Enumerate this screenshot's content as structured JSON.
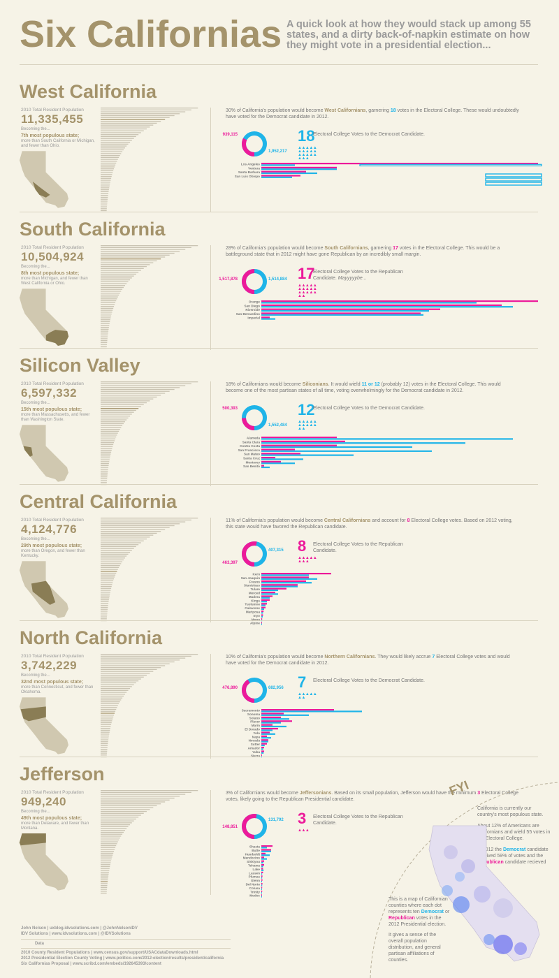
{
  "header": {
    "title": "Six Californias",
    "tagline": "A quick look at how they would stack up among 55 states, and a dirty back-of-napkin estimate on how they might vote in a presidential election..."
  },
  "pop_label": "2010 Total Resident Population",
  "becoming_label": "Becoming the...",
  "ev_line_suffix_dem": "Electoral College Votes to the Democrat Candidate.",
  "ev_line_suffix_rep": "Electoral College Votes to the Republican Candidate.",
  "colors": {
    "gold": "#a4936b",
    "magenta": "#ec1a9a",
    "cyan": "#1fb4e8",
    "background": "#f6f3e7"
  },
  "states": [
    {
      "name": "West California",
      "population": "11,335,455",
      "rank": "7th most populous state;",
      "comparison": "more than South California or Michigan, and fewer than Ohio.",
      "rank_index": 7,
      "description": [
        {
          "t": "30% of California's population would become "
        },
        {
          "t": "West Californians",
          "k": "g"
        },
        {
          "t": ", garnering "
        },
        {
          "t": "18",
          "k": "c"
        },
        {
          "t": " votes in the Electoral College.  These would undoubtedly have voted for the Democrat candidate in 2012."
        }
      ],
      "rep_votes": "939,115",
      "dem_votes": "1,952,217",
      "rep_share": 0.325,
      "electoral_votes": "18",
      "winner": "dem",
      "ev_suffix": "",
      "counties": [
        {
          "name": "Los Angeles",
          "rep": 0.99,
          "dem": 0.12,
          "rep_label": "514,xxx"
        },
        {
          "name": "Ventura",
          "rep": 0.27,
          "dem": 0.27
        },
        {
          "name": "Santa Barbara",
          "rep": 0.16,
          "dem": 0.2
        },
        {
          "name": "San Luis Obispo",
          "rep": 0.14,
          "dem": 0.11,
          "dem_label": "xx,xxx"
        }
      ],
      "map_region": "west"
    },
    {
      "name": "South California",
      "population": "10,504,924",
      "rank": "8th most populous state;",
      "comparison": "more than Michigan, and fewer than West California or Ohio.",
      "rank_index": 8,
      "description": [
        {
          "t": "28% of California's population would become "
        },
        {
          "t": "South Californians",
          "k": "g"
        },
        {
          "t": ", garnering "
        },
        {
          "t": "17",
          "k": "m"
        },
        {
          "t": " votes in the Electoral College.  This would be a battleground state that in 2012 might have gone Republican by an incredibly small margin."
        }
      ],
      "rep_votes": "1,517,878",
      "dem_votes": "1,514,884",
      "rep_share": 0.5,
      "electoral_votes": "17",
      "winner": "rep",
      "ev_suffix": "Mayyyyybe...",
      "counties": [
        {
          "name": "Orange",
          "rep": 0.99,
          "dem": 0.77,
          "rep_label": "xxx,xxx"
        },
        {
          "name": "San Diego",
          "rep": 0.86,
          "dem": 0.9,
          "dem_label": "xxx,xxx"
        },
        {
          "name": "Riverside",
          "rep": 0.64,
          "dem": 0.6
        },
        {
          "name": "San Bernardino",
          "rep": 0.57,
          "dem": 0.58
        },
        {
          "name": "Imperial",
          "rep": 0.03,
          "dem": 0.05,
          "rep_label": "x,xxx",
          "dem_label": "xx,xxx"
        }
      ],
      "map_region": "south"
    },
    {
      "name": "Silicon Valley",
      "population": "6,597,332",
      "rank": "15th most populous state;",
      "comparison": "more than Massachusetts, and fewer than Washington State.",
      "rank_index": 15,
      "description": [
        {
          "t": "18% of Californians would become "
        },
        {
          "t": "Siliconians",
          "k": "g"
        },
        {
          "t": ".  It would wield "
        },
        {
          "t": "11 or 12",
          "k": "c"
        },
        {
          "t": " (probably 12) votes in the Electoral College.  This would become one of the most partisan states of all time, voting overwhelmingly for the Democrat candidate in 2012."
        }
      ],
      "rep_votes": "500,393",
      "dem_votes": "1,552,484",
      "rep_share": 0.244,
      "electoral_votes": "12",
      "winner": "dem",
      "ev_suffix": "",
      "counties": [
        {
          "name": "Alameda",
          "rep": 0.27,
          "dem": 0.9,
          "rep_label": "xxx,xxx",
          "dem_label": "xxx,xxx"
        },
        {
          "name": "Santa Clara",
          "rep": 0.3,
          "dem": 0.73
        },
        {
          "name": "Contra Costa",
          "rep": 0.27,
          "dem": 0.54
        },
        {
          "name": "San Francisco",
          "rep": 0.12,
          "dem": 0.61
        },
        {
          "name": "San Mateo",
          "rep": 0.14,
          "dem": 0.33
        },
        {
          "name": "Santa Cruz",
          "rep": 0.05,
          "dem": 0.15
        },
        {
          "name": "Monterey",
          "rep": 0.07,
          "dem": 0.12
        },
        {
          "name": "San Benito",
          "rep": 0.01,
          "dem": 0.03,
          "rep_label": "x,xxx",
          "dem_label": "x,xxx"
        }
      ],
      "map_region": "silicon"
    },
    {
      "name": "Central California",
      "population": "4,124,776",
      "rank": "29th most populous state;",
      "comparison": "more than Oregon, and fewer than Kentucky.",
      "rank_index": 29,
      "description": [
        {
          "t": "11% of California's population would become "
        },
        {
          "t": "Central Californians",
          "k": "g"
        },
        {
          "t": " and account for "
        },
        {
          "t": "8",
          "k": "m"
        },
        {
          "t": " Electoral College votes.  Based on 2012 voting, this state would have favored the Republican candidate."
        }
      ],
      "rep_votes": "463,397",
      "dem_votes": "407,315",
      "rep_share": 0.532,
      "electoral_votes": "8",
      "winner": "rep",
      "ev_suffix": "",
      "counties": [
        {
          "name": "Kern",
          "rep": 0.25,
          "dem": 0.17,
          "rep_label": "xxx,xxx"
        },
        {
          "name": "San Joaquin",
          "rep": 0.17,
          "dem": 0.2,
          "dem_label": "xx,xxx"
        },
        {
          "name": "Fresno",
          "rep": 0.16,
          "dem": 0.18
        },
        {
          "name": "Stanislaus",
          "rep": 0.13,
          "dem": 0.13
        },
        {
          "name": "Tulare",
          "rep": 0.09,
          "dem": 0.06
        },
        {
          "name": "Merced",
          "rep": 0.05,
          "dem": 0.06
        },
        {
          "name": "Madera",
          "rep": 0.04,
          "dem": 0.03
        },
        {
          "name": "Kings",
          "rep": 0.03,
          "dem": 0.02
        },
        {
          "name": "Tuolumne",
          "rep": 0.02,
          "dem": 0.015
        },
        {
          "name": "Calaveras",
          "rep": 0.015,
          "dem": 0.01
        },
        {
          "name": "Mariposa",
          "rep": 0.008,
          "dem": 0.006
        },
        {
          "name": "Inyo",
          "rep": 0.006,
          "dem": 0.005
        },
        {
          "name": "Mono",
          "rep": 0.003,
          "dem": 0.003
        },
        {
          "name": "Alpine",
          "rep": 0.001,
          "dem": 0.001,
          "rep_label": "xxx",
          "dem_label": "xxx"
        }
      ],
      "map_region": "central"
    },
    {
      "name": "North California",
      "population": "3,742,229",
      "rank": "32nd most populous state;",
      "comparison": "more than Connecticut, and fewer than Oklahoma.",
      "rank_index": 32,
      "description": [
        {
          "t": "10% of California's population would become "
        },
        {
          "t": "Northern Californians",
          "k": "g"
        },
        {
          "t": ".  They would likely accrue "
        },
        {
          "t": "7",
          "k": "c"
        },
        {
          "t": " Electoral College votes and would have voted for the Democrat candidate in 2012."
        }
      ],
      "rep_votes": "476,890",
      "dem_votes": "682,956",
      "rep_share": 0.411,
      "electoral_votes": "7",
      "winner": "dem",
      "ev_suffix": "",
      "counties": [
        {
          "name": "Sacramento",
          "rep": 0.26,
          "dem": 0.36,
          "rep_label": "xxx,xxx",
          "dem_label": "xxx,xxx"
        },
        {
          "name": "Sonoma",
          "rep": 0.08,
          "dem": 0.17
        },
        {
          "name": "Solano",
          "rep": 0.07,
          "dem": 0.1
        },
        {
          "name": "Placer",
          "rep": 0.11,
          "dem": 0.07
        },
        {
          "name": "Marin",
          "rep": 0.04,
          "dem": 0.09
        },
        {
          "name": "El Dorado",
          "rep": 0.06,
          "dem": 0.04
        },
        {
          "name": "Yolo",
          "rep": 0.03,
          "dem": 0.05
        },
        {
          "name": "Napa",
          "rep": 0.02,
          "dem": 0.035
        },
        {
          "name": "Nevada",
          "rep": 0.025,
          "dem": 0.025
        },
        {
          "name": "Sutter",
          "rep": 0.02,
          "dem": 0.012
        },
        {
          "name": "Amador",
          "rep": 0.01,
          "dem": 0.007
        },
        {
          "name": "Yuba",
          "rep": 0.01,
          "dem": 0.008
        },
        {
          "name": "Sierra",
          "rep": 0.001,
          "dem": 0.001,
          "rep_label": "x,xxx",
          "dem_label": "xxx"
        }
      ],
      "map_region": "north"
    },
    {
      "name": "Jefferson",
      "population": "949,240",
      "rank": "49th most populous state;",
      "comparison": "more than Delaware, and fewer than Montana.",
      "rank_index": 49,
      "description": [
        {
          "t": "3% of Californians would become "
        },
        {
          "t": "Jeffersonians",
          "k": "g"
        },
        {
          "t": ".  Based on its small population, Jefferson would have the minimum "
        },
        {
          "t": "3",
          "k": "m"
        },
        {
          "t": " Electoral College votes, likely going to the Republican Presidential candidate."
        }
      ],
      "rep_votes": "148,851",
      "dem_votes": "131,792",
      "rep_share": 0.53,
      "electoral_votes": "3",
      "winner": "rep",
      "ev_suffix": "",
      "counties": [
        {
          "name": "Shasta",
          "rep": 0.04,
          "dem": 0.02,
          "rep_label": "xx,xxx"
        },
        {
          "name": "Butte",
          "rep": 0.035,
          "dem": 0.035
        },
        {
          "name": "Humboldt",
          "rep": 0.015,
          "dem": 0.03
        },
        {
          "name": "Mendocino",
          "rep": 0.01,
          "dem": 0.02
        },
        {
          "name": "Siskiyou",
          "rep": 0.01,
          "dem": 0.007
        },
        {
          "name": "Tehama",
          "rep": 0.01,
          "dem": 0.006
        },
        {
          "name": "Lake",
          "rep": 0.006,
          "dem": 0.008
        },
        {
          "name": "Lassen",
          "rep": 0.006,
          "dem": 0.003
        },
        {
          "name": "Plumas",
          "rep": 0.004,
          "dem": 0.003
        },
        {
          "name": "Glenn",
          "rep": 0.004,
          "dem": 0.002
        },
        {
          "name": "Del Norte",
          "rep": 0.004,
          "dem": 0.003
        },
        {
          "name": "Colusa",
          "rep": 0.003,
          "dem": 0.002
        },
        {
          "name": "Trinity",
          "rep": 0.003,
          "dem": 0.002
        },
        {
          "name": "Modoc",
          "rep": 0.002,
          "dem": 0.001,
          "rep_label": "x,xxx"
        }
      ],
      "map_region": "jefferson"
    }
  ],
  "footer": {
    "author_line": "John Nelson  |  uxblog.idvsolutions.com  |  @JohnNelsonIDV",
    "company_line": "IDV Solutions  |  www.idvsolutions.com  |  @IDVSolutions",
    "data_label": "Data",
    "sources": [
      "2010 County Resident Populations  |  www.census.gov/support/USACdataDownloads.html",
      "2012 Presidential Election County Voting  |  www.politico.com/2012-election/results/president/california",
      "Six Californias Proposal  |  www.scribd.com/embeds/192645393/content"
    ]
  },
  "fyi": {
    "title": "FYI",
    "p1": "California is currently our country's most populous state.",
    "p2": "About 12% of Americans are Californians and wield 55 votes in the Electoral College.",
    "p3_parts": [
      {
        "t": "In 2012 the "
      },
      {
        "t": "Democrat",
        "k": "c"
      },
      {
        "t": " candidate received 59% of votes and the "
      },
      {
        "t": "Republican",
        "k": "m"
      },
      {
        "t": " candidate recieved 38%."
      }
    ],
    "map_p1_parts": [
      {
        "t": "This is a map of Californian counties where each dot represents ten "
      },
      {
        "t": "Democrat",
        "k": "c"
      },
      {
        "t": " or "
      },
      {
        "t": "Republican",
        "k": "m"
      },
      {
        "t": " votes in the 2012 Presidential election."
      }
    ],
    "map_p2": "It gives a sense of the overall population distribution, and general partisan affiliations of counties."
  }
}
